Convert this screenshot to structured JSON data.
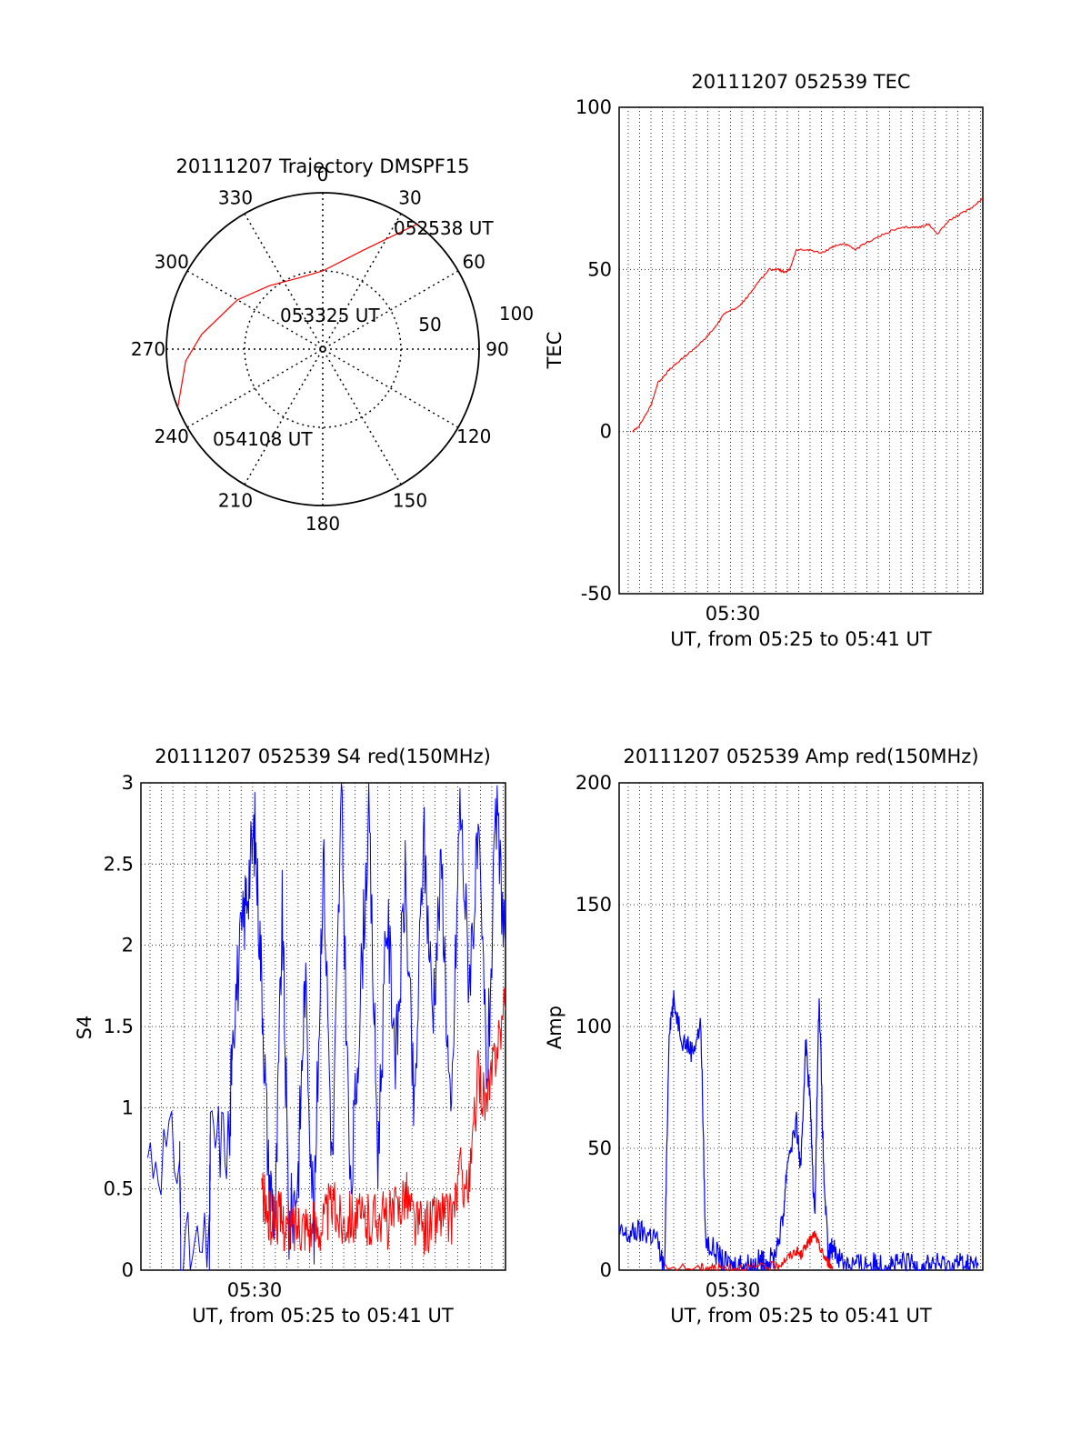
{
  "chart_data": [
    {
      "id": "trajectory",
      "type": "polar",
      "title": "20111207 Trajectory DMSPF15",
      "angle_labels": [
        "0",
        "30",
        "60",
        "90",
        "120",
        "150",
        "180",
        "210",
        "240",
        "270",
        "300",
        "330"
      ],
      "radius_labels": [
        "50",
        "100"
      ],
      "radius_max": 100,
      "track": {
        "color": "#ff0000",
        "points": [
          {
            "az": 37,
            "r": 100
          },
          {
            "az": 22,
            "r": 68
          },
          {
            "az": 0,
            "r": 50
          },
          {
            "az": -18,
            "r": 48
          },
          {
            "az": -40,
            "r": 53
          },
          {
            "az": -60,
            "r": 63
          },
          {
            "az": -83,
            "r": 78
          },
          {
            "az": -95,
            "r": 88
          },
          {
            "az": -112,
            "r": 100
          }
        ],
        "annotations": [
          {
            "text": "052538 UT",
            "az": 37,
            "r": 100
          },
          {
            "text": "053325 UT",
            "az": -18,
            "r": 48
          },
          {
            "text": "054108 UT",
            "az": -112,
            "r": 100
          }
        ]
      }
    },
    {
      "id": "tec",
      "type": "line",
      "title": "20111207 052539 TEC",
      "xlabel": "UT, from 05:25 to 05:41 UT",
      "ylabel": "TEC",
      "xtick_label": "05:30",
      "ylim": [
        -50,
        100
      ],
      "yticks": [
        "-50",
        "0",
        "50",
        "100"
      ],
      "xlim_minutes": [
        25.6,
        41.6
      ],
      "series": [
        {
          "color": "#ff0000",
          "x": [
            26.2,
            26.5,
            27.0,
            27.3,
            27.8,
            28.3,
            28.8,
            29.3,
            29.8,
            30.3,
            30.8,
            31.3,
            31.7,
            32.2,
            32.6,
            32.9,
            33.1,
            33.4,
            34.0,
            34.5,
            35.0,
            35.5,
            36.0,
            36.4,
            37.0,
            37.6,
            38.2,
            38.8,
            39.2,
            39.6,
            40.1,
            40.6,
            41.1,
            41.6
          ],
          "y": [
            0,
            2,
            8,
            15,
            19,
            22,
            25,
            28,
            32,
            37,
            38,
            42,
            46,
            50,
            50,
            49,
            50,
            56,
            56,
            55,
            57,
            58,
            56,
            58,
            60,
            62,
            63,
            63,
            64,
            61,
            65,
            67,
            69,
            72
          ]
        }
      ]
    },
    {
      "id": "s4",
      "type": "line",
      "title": "20111207 052539 S4 red(150MHz)",
      "xlabel": "UT, from 05:25 to 05:41 UT",
      "ylabel": "S4",
      "xtick_label": "05:30",
      "ylim": [
        0,
        3
      ],
      "yticks": [
        "0",
        "0.5",
        "1",
        "1.5",
        "2",
        "2.5",
        "3"
      ],
      "xlim_minutes": [
        25.6,
        41.6
      ],
      "series": [
        {
          "color": "#0000ff",
          "x": [
            25.9,
            27.3,
            27.35,
            28.6,
            28.65,
            29.5,
            29.6,
            30.0,
            30.3,
            30.6,
            30.9,
            31.2,
            31.5,
            31.8,
            32.1,
            32.5,
            32.8,
            33.2,
            33.6,
            34.0,
            34.4,
            34.8,
            35.2,
            35.6,
            36.0,
            36.4,
            36.8,
            37.2,
            37.6,
            38.0,
            38.4,
            38.8,
            39.2,
            39.6,
            40.0,
            40.4,
            40.8,
            41.2,
            41.6
          ],
          "y": [
            0.72,
            0.72,
            0.1,
            0.1,
            0.8,
            0.8,
            1.5,
            2.0,
            2.4,
            2.7,
            1.8,
            0.6,
            0.3,
            2.2,
            0.25,
            0.6,
            1.8,
            0.25,
            2.6,
            0.6,
            2.9,
            0.4,
            1.6,
            2.8,
            0.7,
            2.2,
            1.3,
            2.4,
            0.9,
            2.7,
            1.6,
            2.5,
            0.8,
            2.9,
            1.8,
            2.6,
            1.2,
            2.8,
            2.0
          ]
        },
        {
          "color": "#ff0000",
          "x": [
            30.9,
            31.2,
            31.5,
            31.8,
            32.1,
            32.5,
            32.8,
            33.2,
            33.6,
            34.0,
            34.4,
            34.8,
            35.2,
            35.6,
            36.0,
            36.4,
            36.8,
            37.2,
            37.6,
            38.0,
            38.4,
            38.8,
            39.2,
            39.6,
            40.0,
            40.4,
            40.8,
            41.2,
            41.6
          ],
          "y": [
            0.5,
            0.3,
            0.35,
            0.3,
            0.25,
            0.3,
            0.3,
            0.25,
            0.3,
            0.4,
            0.3,
            0.35,
            0.3,
            0.3,
            0.35,
            0.3,
            0.35,
            0.5,
            0.3,
            0.25,
            0.3,
            0.35,
            0.3,
            0.6,
            0.5,
            1.2,
            1.0,
            1.4,
            1.6
          ]
        }
      ]
    },
    {
      "id": "amp",
      "type": "line",
      "title": "20111207 052539 Amp red(150MHz)",
      "xlabel": "UT, from 05:25 to 05:41 UT",
      "ylabel": "Amp",
      "xtick_label": "05:30",
      "ylim": [
        0,
        200
      ],
      "yticks": [
        "0",
        "50",
        "100",
        "150",
        "200"
      ],
      "xlim_minutes": [
        25.6,
        41.6
      ],
      "series": [
        {
          "color": "#0000ff",
          "x": [
            25.6,
            26.0,
            26.4,
            26.8,
            27.2,
            27.6,
            27.8,
            28.0,
            28.4,
            28.8,
            29.2,
            29.4,
            29.8,
            30.2,
            30.6,
            31.0,
            31.4,
            31.8,
            32.0,
            32.4,
            32.8,
            33.0,
            33.4,
            33.6,
            33.8,
            34.0,
            34.2,
            34.4,
            34.6,
            34.8,
            35.0,
            35.4,
            35.8,
            36.2,
            36.6,
            37.0,
            37.4,
            37.8,
            38.2,
            38.6,
            39.0,
            39.4,
            39.8,
            40.2,
            40.6,
            41.0,
            41.4
          ],
          "y": [
            15,
            14,
            16,
            15,
            14,
            0,
            100,
            110,
            95,
            90,
            100,
            12,
            8,
            3,
            2,
            3,
            2,
            4,
            3,
            5,
            20,
            45,
            60,
            40,
            95,
            70,
            20,
            115,
            40,
            5,
            10,
            4,
            3,
            2,
            3,
            2,
            3,
            2,
            3,
            2,
            2,
            3,
            2,
            2,
            3,
            2,
            2
          ]
        },
        {
          "color": "#ff0000",
          "x": [
            27.6,
            29.2,
            29.6,
            30.2,
            31.0,
            32.0,
            32.6,
            33.0,
            33.4,
            33.6,
            33.8,
            34.0,
            34.2,
            34.4,
            34.6,
            34.8,
            35.0
          ],
          "y": [
            1,
            1,
            1,
            1,
            1,
            1,
            2,
            5,
            8,
            6,
            10,
            12,
            15,
            10,
            6,
            3,
            1
          ]
        }
      ]
    }
  ]
}
